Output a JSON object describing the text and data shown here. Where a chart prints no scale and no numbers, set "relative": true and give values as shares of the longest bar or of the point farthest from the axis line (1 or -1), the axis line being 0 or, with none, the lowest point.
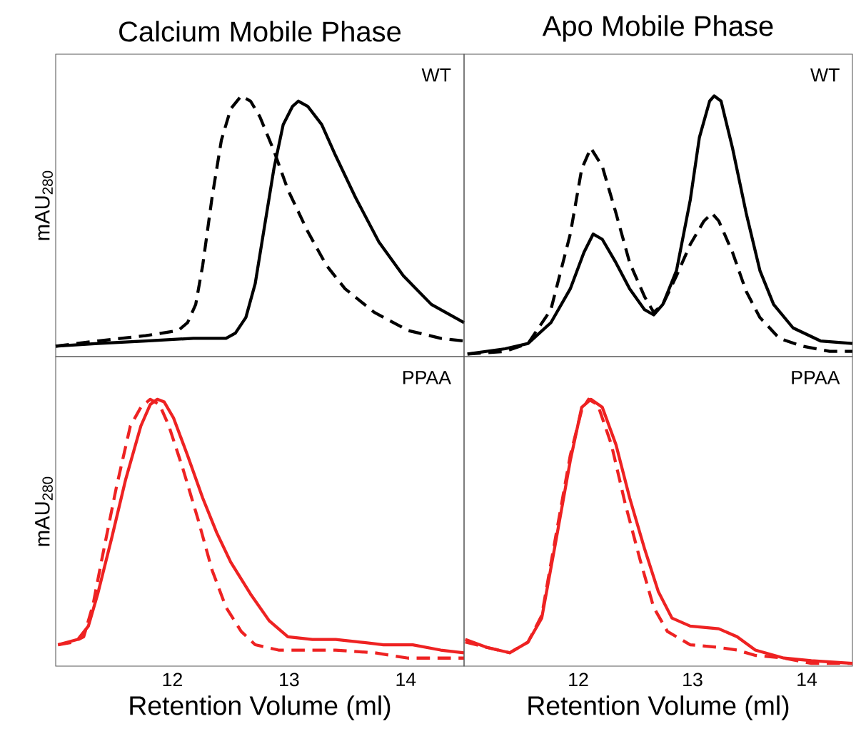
{
  "chart_data": [
    {
      "type": "line",
      "title": "Calcium Mobile Phase",
      "ylabel": "mAU$_{280}$",
      "annotations": [
        "WT"
      ],
      "relative": true,
      "xlim": [
        11.0,
        14.5
      ],
      "tick_labels": false,
      "series": [
        {
          "color": "#000000",
          "line_style": "solid",
          "x": [
            11.0,
            11.36,
            11.77,
            12.18,
            12.46,
            12.54,
            12.63,
            12.71,
            12.79,
            12.87,
            12.95,
            13.03,
            13.08,
            13.16,
            13.28,
            13.4,
            13.57,
            13.77,
            13.98,
            14.22,
            14.5
          ],
          "values": [
            0.04,
            0.05,
            0.06,
            0.07,
            0.07,
            0.09,
            0.15,
            0.28,
            0.5,
            0.72,
            0.89,
            0.96,
            0.98,
            0.96,
            0.89,
            0.77,
            0.61,
            0.44,
            0.31,
            0.2,
            0.13
          ]
        },
        {
          "color": "#000000",
          "line_style": "dashed",
          "x": [
            11.0,
            11.36,
            11.77,
            12.05,
            12.13,
            12.2,
            12.26,
            12.34,
            12.42,
            12.5,
            12.59,
            12.67,
            12.75,
            12.87,
            12.99,
            13.16,
            13.32,
            13.48,
            13.73,
            14.02,
            14.3,
            14.5
          ],
          "values": [
            0.04,
            0.06,
            0.08,
            0.1,
            0.13,
            0.2,
            0.35,
            0.61,
            0.83,
            0.95,
            1.0,
            0.98,
            0.92,
            0.79,
            0.64,
            0.48,
            0.35,
            0.26,
            0.17,
            0.1,
            0.07,
            0.06
          ]
        }
      ]
    },
    {
      "type": "line",
      "title": "Apo Mobile Phase",
      "annotations": [
        "WT"
      ],
      "relative": true,
      "xlim": [
        11.0,
        14.4
      ],
      "tick_labels": false,
      "series": [
        {
          "color": "#000000",
          "line_style": "solid",
          "x": [
            11.03,
            11.36,
            11.56,
            11.76,
            11.93,
            12.05,
            12.13,
            12.21,
            12.33,
            12.45,
            12.58,
            12.66,
            12.74,
            12.86,
            12.98,
            13.06,
            13.15,
            13.19,
            13.25,
            13.35,
            13.47,
            13.59,
            13.71,
            13.88,
            14.12,
            14.4
          ],
          "values": [
            0.01,
            0.03,
            0.05,
            0.13,
            0.26,
            0.4,
            0.47,
            0.45,
            0.36,
            0.26,
            0.18,
            0.16,
            0.2,
            0.33,
            0.6,
            0.84,
            0.98,
            1.0,
            0.98,
            0.8,
            0.55,
            0.33,
            0.2,
            0.11,
            0.06,
            0.05
          ]
        },
        {
          "color": "#000000",
          "line_style": "dashed",
          "x": [
            11.03,
            11.36,
            11.56,
            11.76,
            11.93,
            12.03,
            12.11,
            12.21,
            12.33,
            12.45,
            12.58,
            12.66,
            12.74,
            12.86,
            12.98,
            13.1,
            13.17,
            13.23,
            13.35,
            13.47,
            13.59,
            13.76,
            13.96,
            14.2,
            14.4
          ],
          "values": [
            0.01,
            0.02,
            0.05,
            0.18,
            0.47,
            0.72,
            0.8,
            0.73,
            0.55,
            0.36,
            0.23,
            0.17,
            0.2,
            0.31,
            0.43,
            0.52,
            0.55,
            0.52,
            0.4,
            0.25,
            0.15,
            0.07,
            0.04,
            0.02,
            0.02
          ]
        }
      ]
    },
    {
      "type": "line",
      "xlabel": "Retention Volume (ml)",
      "ylabel": "mAU$_{280}$",
      "annotations": [
        "PPAA"
      ],
      "relative": true,
      "xlim": [
        11.0,
        14.5
      ],
      "xticks": [
        12,
        13,
        14
      ],
      "tick_labels": "x",
      "series": [
        {
          "color": "#ee2222",
          "line_style": "solid",
          "x": [
            11.02,
            11.19,
            11.28,
            11.36,
            11.48,
            11.6,
            11.73,
            11.81,
            11.87,
            11.93,
            12.01,
            12.13,
            12.26,
            12.38,
            12.5,
            12.67,
            12.83,
            12.99,
            13.2,
            13.4,
            13.61,
            13.81,
            14.06,
            14.3,
            14.5
          ],
          "values": [
            0.08,
            0.1,
            0.15,
            0.27,
            0.48,
            0.7,
            0.9,
            0.98,
            1.0,
            0.99,
            0.93,
            0.79,
            0.63,
            0.5,
            0.39,
            0.27,
            0.17,
            0.11,
            0.1,
            0.1,
            0.09,
            0.08,
            0.08,
            0.06,
            0.05
          ]
        },
        {
          "color": "#ee2222",
          "line_style": "dashed",
          "x": [
            11.02,
            11.15,
            11.24,
            11.32,
            11.4,
            11.52,
            11.64,
            11.73,
            11.81,
            11.89,
            11.97,
            12.09,
            12.22,
            12.34,
            12.46,
            12.59,
            12.71,
            12.91,
            13.4,
            13.73,
            14.02,
            14.3,
            14.5
          ],
          "values": [
            0.08,
            0.09,
            0.11,
            0.23,
            0.41,
            0.67,
            0.9,
            0.97,
            1.0,
            0.98,
            0.9,
            0.74,
            0.55,
            0.36,
            0.22,
            0.13,
            0.08,
            0.06,
            0.06,
            0.05,
            0.03,
            0.03,
            0.03
          ]
        }
      ]
    },
    {
      "type": "line",
      "xlabel": "Retention Volume (ml)",
      "annotations": [
        "PPAA"
      ],
      "relative": true,
      "xlim": [
        11.0,
        14.4
      ],
      "xticks": [
        12,
        13,
        14
      ],
      "tick_labels": "x",
      "series": [
        {
          "color": "#ee2222",
          "line_style": "solid",
          "x": [
            11.01,
            11.2,
            11.4,
            11.56,
            11.68,
            11.8,
            11.93,
            12.03,
            12.11,
            12.21,
            12.33,
            12.45,
            12.58,
            12.7,
            12.82,
            12.98,
            13.23,
            13.39,
            13.55,
            13.8,
            14.04,
            14.4
          ],
          "values": [
            0.1,
            0.07,
            0.05,
            0.09,
            0.18,
            0.46,
            0.77,
            0.97,
            1.0,
            0.97,
            0.83,
            0.63,
            0.44,
            0.28,
            0.18,
            0.15,
            0.14,
            0.11,
            0.06,
            0.03,
            0.02,
            0.01
          ]
        },
        {
          "color": "#ee2222",
          "line_style": "dashed",
          "x": [
            11.01,
            11.2,
            11.4,
            11.56,
            11.68,
            11.8,
            11.93,
            12.03,
            12.09,
            12.17,
            12.29,
            12.41,
            12.54,
            12.66,
            12.78,
            12.98,
            13.23,
            13.39,
            13.55,
            13.8,
            14.04,
            14.4
          ],
          "values": [
            0.09,
            0.07,
            0.05,
            0.09,
            0.19,
            0.48,
            0.79,
            0.96,
            1.0,
            0.98,
            0.83,
            0.61,
            0.4,
            0.22,
            0.13,
            0.08,
            0.07,
            0.06,
            0.04,
            0.03,
            0.01,
            0.01
          ]
        }
      ]
    }
  ]
}
